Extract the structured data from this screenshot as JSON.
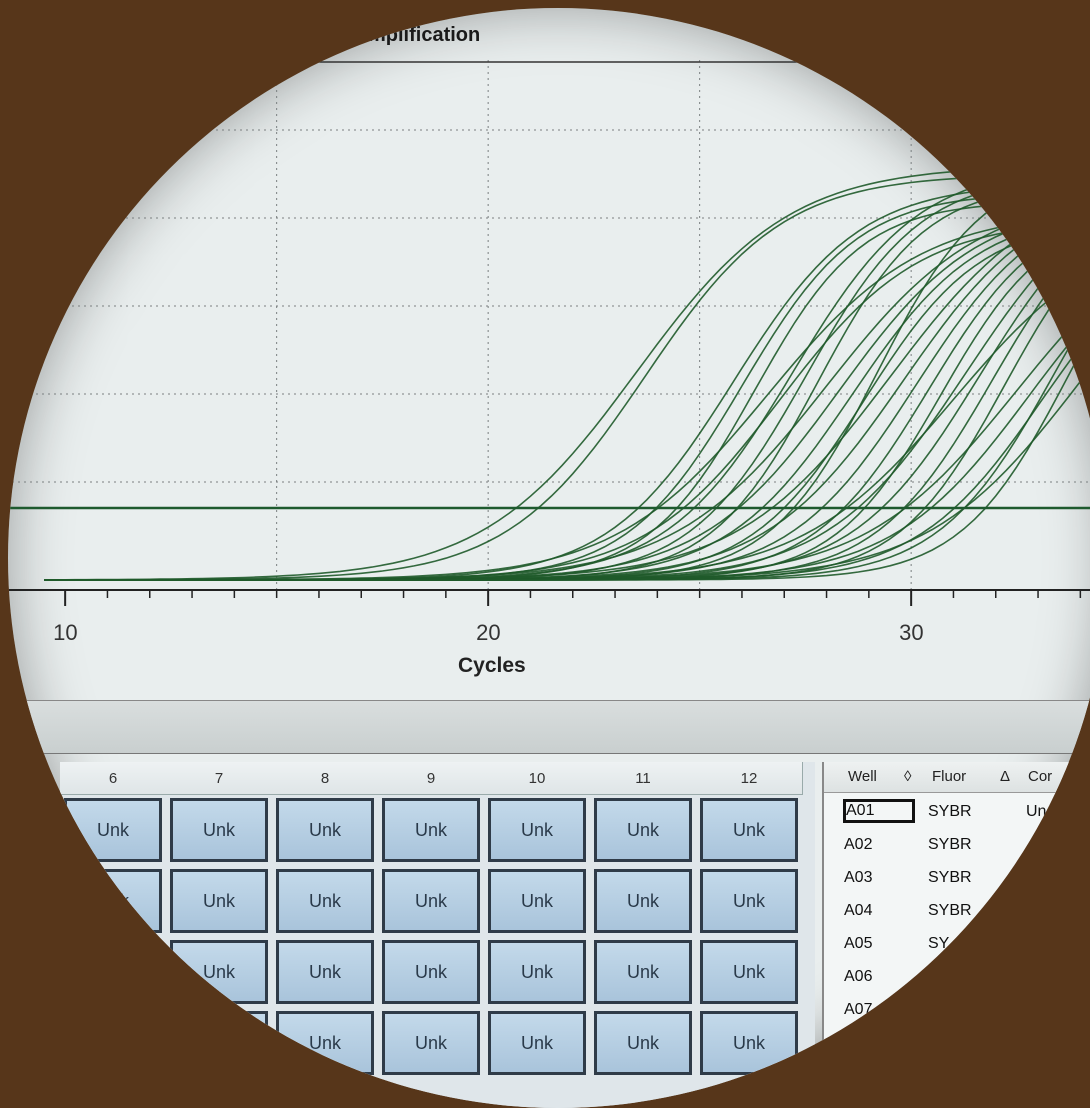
{
  "chart_data": {
    "type": "line",
    "title": "mplification",
    "xlabel": "Cycles",
    "ylabel": "",
    "xlim": [
      9.5,
      35
    ],
    "x_ticks": [
      10,
      20,
      30
    ],
    "threshold_visible": true,
    "grid": "dotted",
    "series_color": "#1f5a2a",
    "curve_midpoints": [
      23.5,
      23.7,
      25.8,
      26.0,
      26.3,
      26.6,
      26.9,
      27.2,
      27.5,
      27.8,
      28.0,
      28.3,
      28.6,
      28.9,
      29.2,
      29.5,
      29.8,
      30.1,
      30.4,
      30.7,
      31.0,
      31.3,
      31.6,
      31.9,
      32.2,
      32.5,
      32.8,
      33.1,
      33.4,
      33.7,
      34.0
    ]
  },
  "plate": {
    "columns": [
      "6",
      "7",
      "8",
      "9",
      "10",
      "11",
      "12"
    ],
    "well_label": "Unk",
    "rows_visible": 4
  },
  "well_table": {
    "headers": [
      "Well",
      "Fluor",
      "Cor"
    ],
    "sort_glyphs": [
      "◊",
      "Δ"
    ],
    "rows": [
      {
        "well": "A01",
        "fluor": "SYBR",
        "content": "Un"
      },
      {
        "well": "A02",
        "fluor": "SYBR",
        "content": ""
      },
      {
        "well": "A03",
        "fluor": "SYBR",
        "content": ""
      },
      {
        "well": "A04",
        "fluor": "SYBR",
        "content": ""
      },
      {
        "well": "A05",
        "fluor": "SY",
        "content": ""
      },
      {
        "well": "A06",
        "fluor": "",
        "content": ""
      },
      {
        "well": "A07",
        "fluor": "",
        "content": ""
      }
    ]
  }
}
